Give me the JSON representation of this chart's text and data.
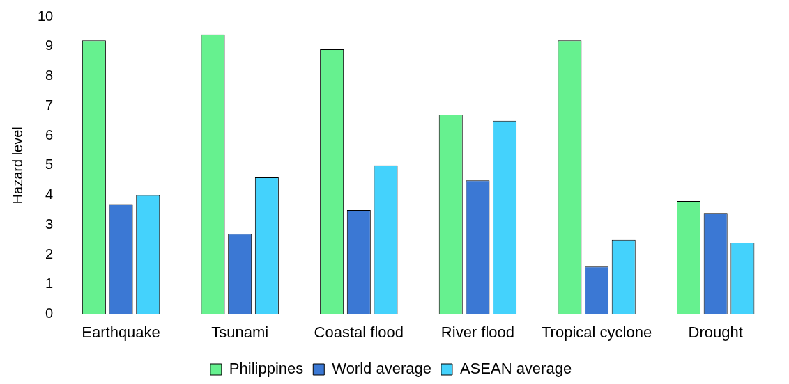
{
  "chart_data": {
    "type": "bar",
    "ylabel": "Hazard level",
    "categories": [
      "Earthquake",
      "Tsunami",
      "Coastal flood",
      "River flood",
      "Tropical cyclone",
      "Drought"
    ],
    "series": [
      {
        "name": "Philippines",
        "color": "#66f18f",
        "values": [
          9.2,
          9.4,
          8.9,
          6.7,
          9.2,
          3.8
        ]
      },
      {
        "name": "World average",
        "color": "#3b78d4",
        "values": [
          3.7,
          2.7,
          3.5,
          4.5,
          1.6,
          3.4
        ]
      },
      {
        "name": "ASEAN average",
        "color": "#44d2fc",
        "values": [
          4.0,
          4.6,
          5.0,
          6.5,
          2.5,
          2.4
        ]
      }
    ],
    "ylim": [
      0,
      10
    ],
    "yticks": [
      0,
      1,
      2,
      3,
      4,
      5,
      6,
      7,
      8,
      9,
      10
    ],
    "grid": false,
    "legend": "bottom"
  }
}
